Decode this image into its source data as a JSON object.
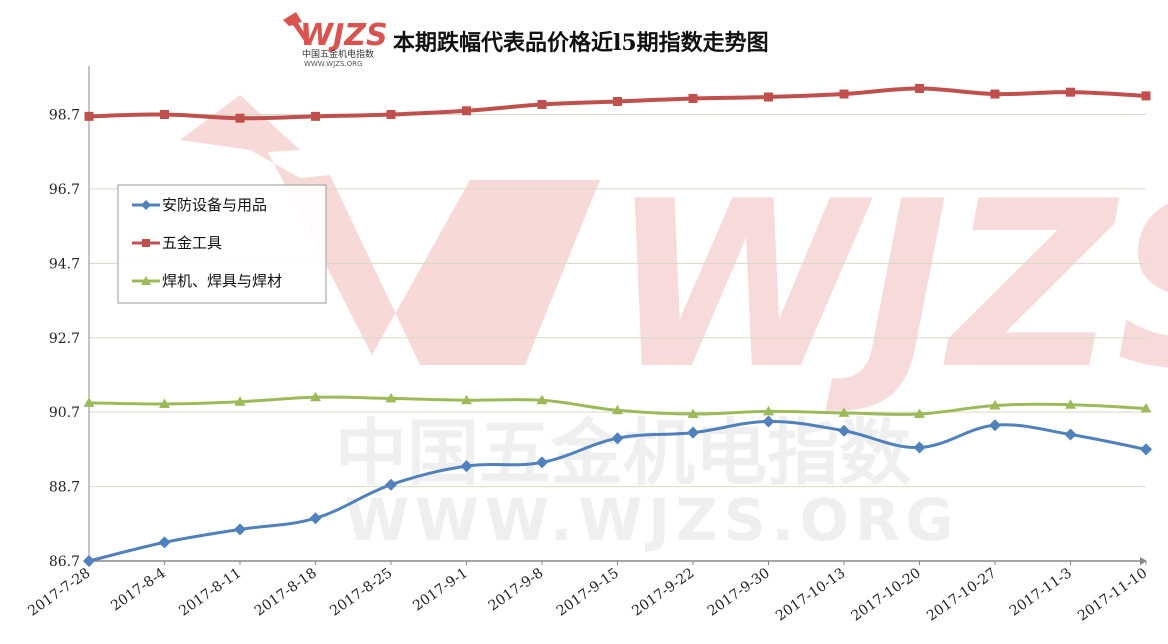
{
  "logo": {
    "text": "WJZS",
    "sub_cn": "中国五金机电指数",
    "sub_url": "WWW.WJZS.ORG"
  },
  "watermark": {
    "main": "WJZS",
    "cn": "中国五金机电指数",
    "url": "WWW.WJZS.ORG"
  },
  "colors": {
    "series1": "#4f81bd",
    "series2": "#c0504d",
    "series3": "#9bbb59",
    "grid": "#d9d9c8",
    "axis": "#888888",
    "watermark": "#d9534f"
  },
  "chart_data": {
    "type": "line",
    "title": "本期跌幅代表品价格近l5期指数走势图",
    "xlabel": "",
    "ylabel": "",
    "categories": [
      "2017-7-28",
      "2017-8-4",
      "2017-8-11",
      "2017-8-18",
      "2017-8-25",
      "2017-9-1",
      "2017-9-8",
      "2017-9-15",
      "2017-9-22",
      "2017-9-30",
      "2017-10-13",
      "2017-10-20",
      "2017-10-27",
      "2017-11-3",
      "2017-11-10"
    ],
    "yticks": [
      "86.7",
      "88.7",
      "90.7",
      "92.7",
      "94.7",
      "96.7",
      "98.7"
    ],
    "ylim": [
      86.7,
      99.9
    ],
    "grid": true,
    "legend_position": "left-middle",
    "series": [
      {
        "name": "安防设备与用品",
        "marker": "diamond",
        "values": [
          86.7,
          87.2,
          87.55,
          87.85,
          88.75,
          89.25,
          89.35,
          90.0,
          90.15,
          90.45,
          90.2,
          89.75,
          90.35,
          90.1,
          89.7
        ]
      },
      {
        "name": "五金工具",
        "marker": "square",
        "values": [
          98.65,
          98.7,
          98.6,
          98.65,
          98.7,
          98.8,
          98.97,
          99.05,
          99.13,
          99.17,
          99.25,
          99.4,
          99.25,
          99.3,
          99.2
        ]
      },
      {
        "name": "焊机、焊具与焊材",
        "marker": "triangle",
        "values": [
          90.95,
          90.92,
          90.98,
          91.1,
          91.07,
          91.02,
          91.02,
          90.75,
          90.65,
          90.72,
          90.68,
          90.65,
          90.88,
          90.9,
          90.8
        ]
      }
    ]
  }
}
